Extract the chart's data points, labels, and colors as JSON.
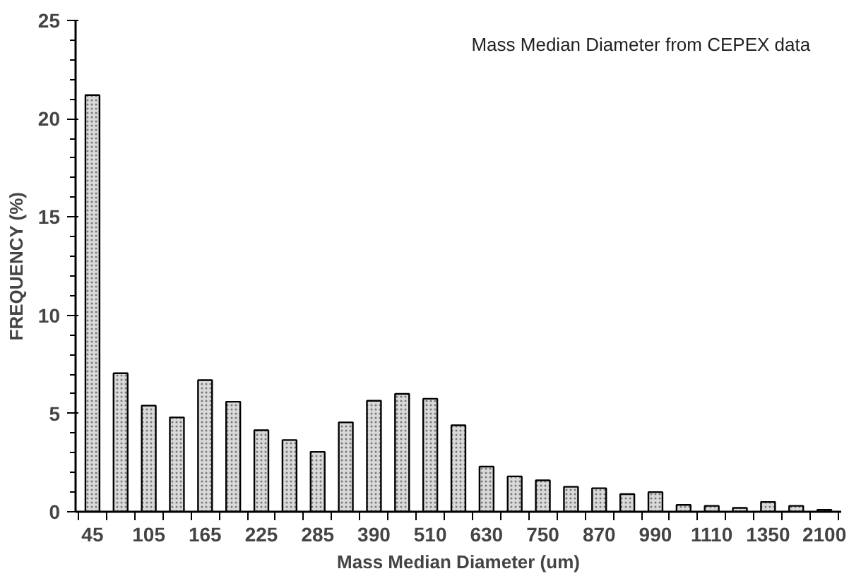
{
  "chart_data": {
    "type": "bar",
    "categories": [
      "45",
      null,
      "105",
      null,
      "165",
      null,
      "225",
      null,
      "285",
      null,
      "390",
      null,
      "510",
      null,
      "630",
      null,
      "750",
      null,
      "870",
      null,
      "990",
      null,
      "1110",
      null,
      "1350",
      null,
      "2100"
    ],
    "values": [
      21.2,
      7.05,
      5.4,
      4.8,
      6.7,
      5.6,
      4.15,
      3.65,
      3.05,
      4.55,
      5.65,
      6.0,
      5.75,
      4.4,
      2.3,
      1.8,
      1.6,
      1.27,
      1.2,
      0.9,
      1.0,
      0.35,
      0.3,
      0.2,
      0.5,
      0.3,
      0.1
    ],
    "color": "#d9d9d9",
    "xlabel": "Mass Median Diameter (um)",
    "ylabel": "FREQUENCY (%)",
    "annotations": [
      "Mass Median Diameter from CEPEX data"
    ],
    "ylim": [
      0,
      25
    ],
    "yticks": [
      0,
      5,
      10,
      15,
      20,
      25
    ],
    "grid": false
  }
}
